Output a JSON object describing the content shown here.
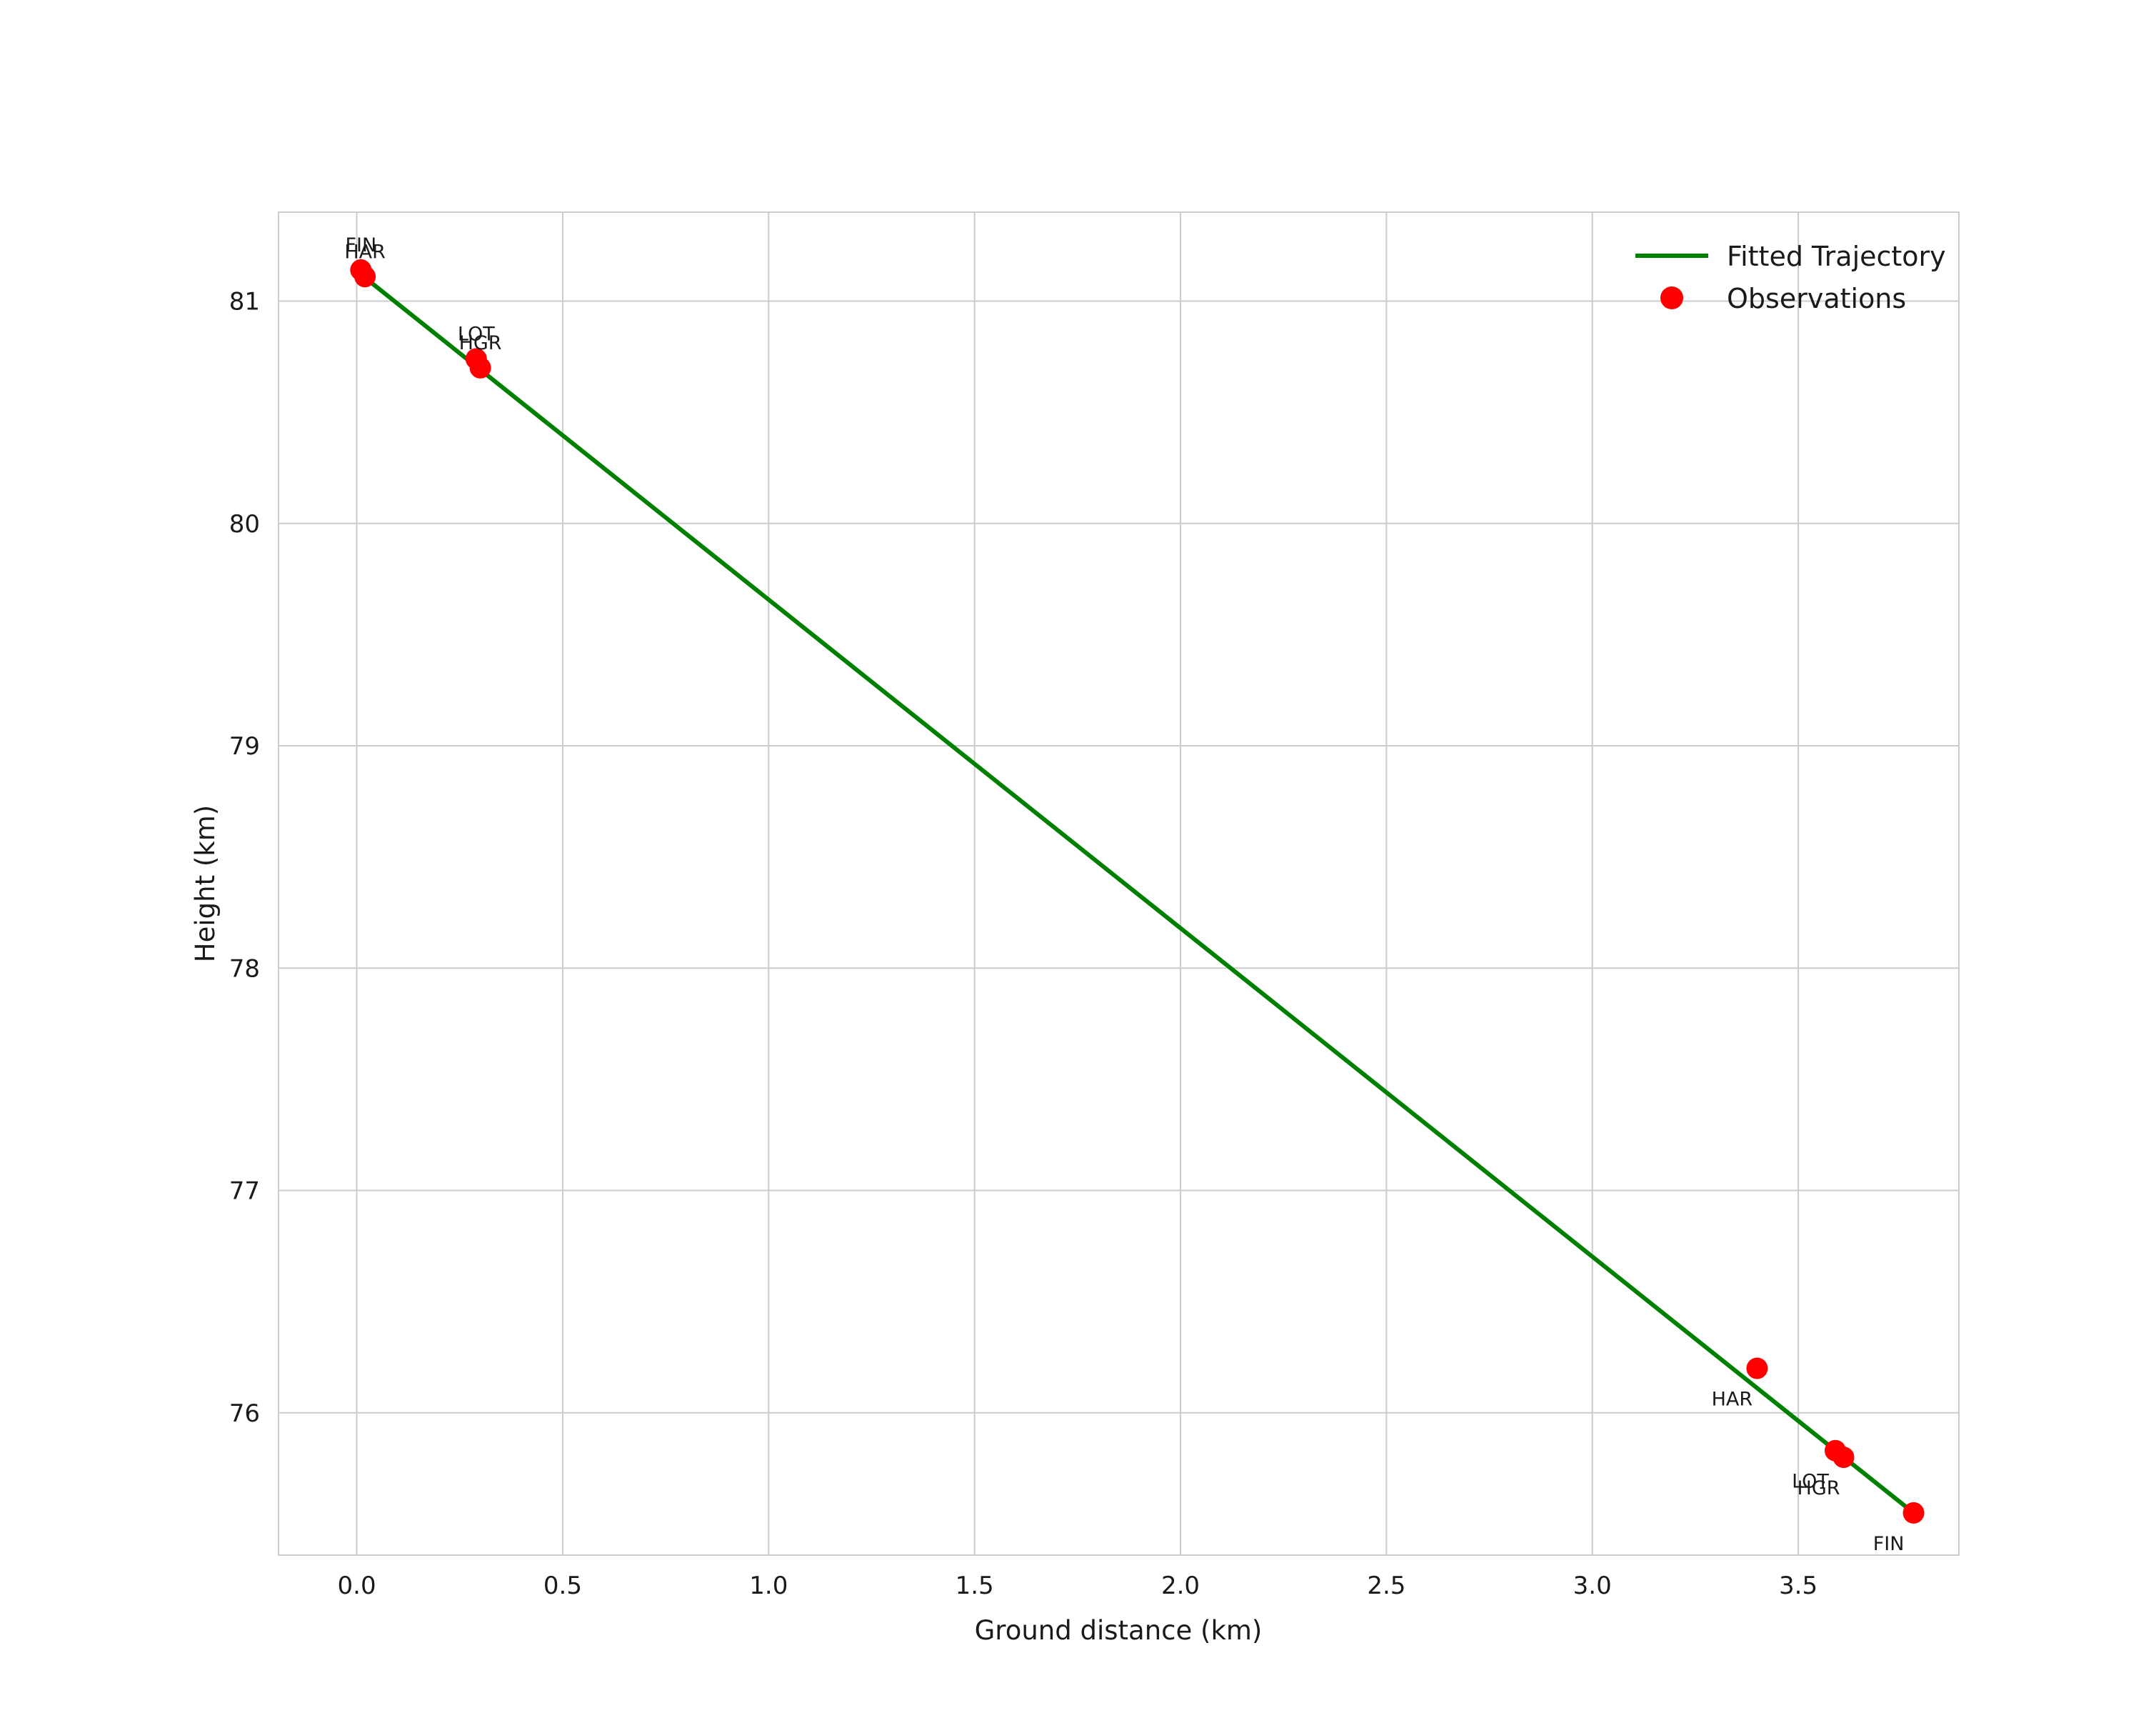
{
  "chart_data": {
    "type": "scatter",
    "title": "",
    "xlabel": "Ground distance (km)",
    "ylabel": "Height (km)",
    "xlim": [
      -0.19,
      3.89
    ],
    "ylim": [
      75.36,
      81.4
    ],
    "xticks": [
      0.0,
      0.5,
      1.0,
      1.5,
      2.0,
      2.5,
      3.0,
      3.5
    ],
    "yticks": [
      76,
      77,
      78,
      79,
      80,
      81
    ],
    "grid": true,
    "grid_color": "#cccccc",
    "frame_color": "#cccccc",
    "marker_color": "#ff0000",
    "line_color": "#008000",
    "legend": {
      "position": "upper right",
      "entries": [
        {
          "label": "Fitted Trajectory",
          "type": "line",
          "color": "#008000"
        },
        {
          "label": "Observations",
          "type": "marker",
          "color": "#ff0000"
        }
      ]
    },
    "fitted_line": {
      "x": [
        0.01,
        3.78
      ],
      "y": [
        81.12,
        75.55
      ],
      "color": "#008000"
    },
    "observations": [
      {
        "label": "FIN",
        "x": 0.01,
        "y": 81.14,
        "label_side": "above"
      },
      {
        "label": "HAR",
        "x": 0.02,
        "y": 81.11,
        "label_side": "above"
      },
      {
        "label": "LOT",
        "x": 0.29,
        "y": 80.74,
        "label_side": "above"
      },
      {
        "label": "HGR",
        "x": 0.3,
        "y": 80.7,
        "label_side": "above"
      },
      {
        "label": "HAR",
        "x": 3.4,
        "y": 76.2,
        "label_side": "below"
      },
      {
        "label": "LOT",
        "x": 3.59,
        "y": 75.83,
        "label_side": "below"
      },
      {
        "label": "HGR",
        "x": 3.61,
        "y": 75.8,
        "label_side": "below"
      },
      {
        "label": "FIN",
        "x": 3.78,
        "y": 75.55,
        "label_side": "below"
      }
    ]
  }
}
